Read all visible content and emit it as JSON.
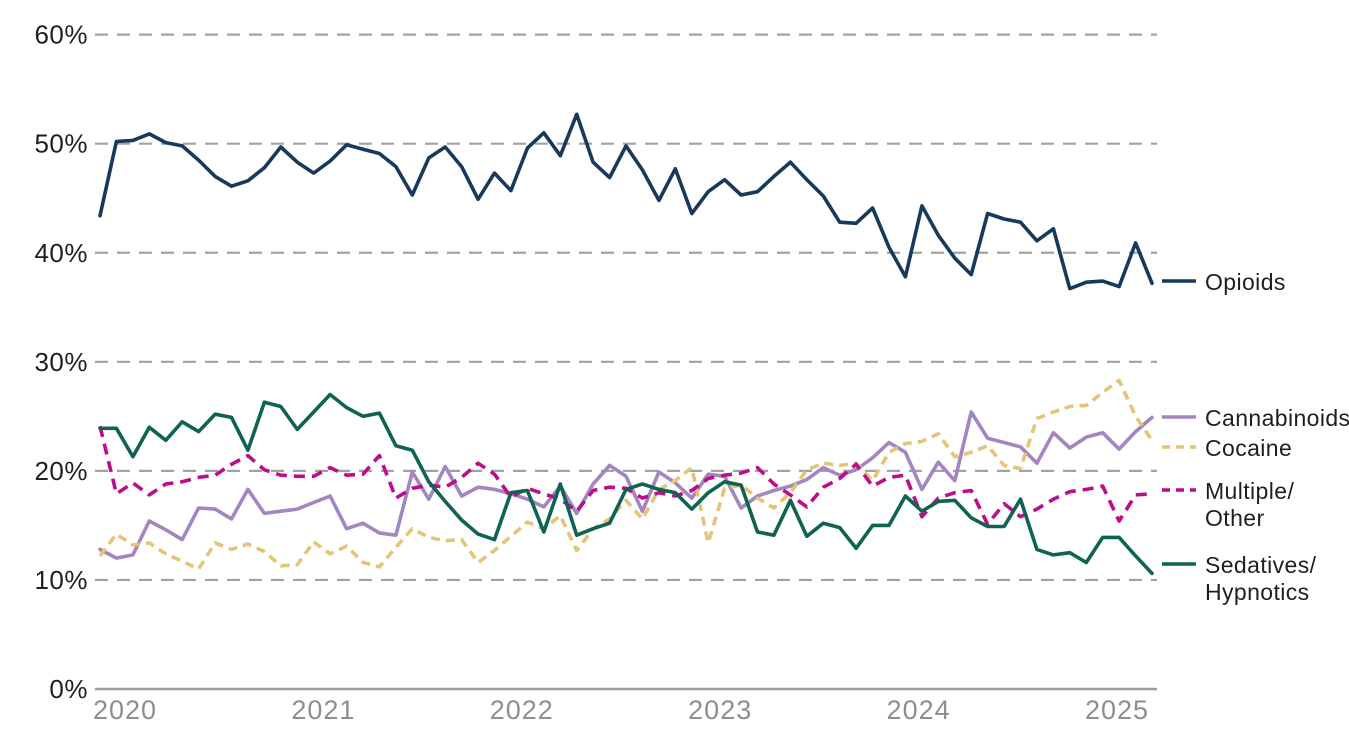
{
  "page": {
    "background": "#ffffff",
    "description_colors": {
      "grid_gray": "#a2a2a2",
      "axis_gray": "#9b9b9b",
      "x_label_gray": "#8e8e8e",
      "text_black": "#1f1f1f"
    }
  },
  "chart_data": {
    "type": "line",
    "title": "",
    "subtitle": "",
    "x_axis": {
      "tick_labels": [
        "2020",
        "2021",
        "2022",
        "2023",
        "2024",
        "2025"
      ],
      "note": "monthly data points, series start just before the 2020 tick and end just after the 2025 tick"
    },
    "y_axis": {
      "tick_labels": [
        "0%",
        "10%",
        "20%",
        "30%",
        "40%",
        "50%",
        "60%"
      ],
      "min": 0,
      "max": 60,
      "unit": "%"
    },
    "grid": {
      "horizontal_dashed_lines": [
        10,
        20,
        30,
        40,
        50,
        60
      ],
      "baseline_solid": 0,
      "vertical_gridlines": false
    },
    "legend": {
      "position": "right",
      "entries": [
        {
          "lines": [
            "Opioids"
          ],
          "color": "#17395c",
          "dashed": false
        },
        {
          "lines": [
            "Cannabinoids"
          ],
          "color": "#a385c1",
          "dashed": false
        },
        {
          "lines": [
            "Cocaine"
          ],
          "color": "#e5c478",
          "dashed": true
        },
        {
          "lines": [
            "Multiple/",
            "Other"
          ],
          "color": "#bb0d8c",
          "dashed": true
        },
        {
          "lines": [
            "Sedatives/",
            "Hypnotics"
          ],
          "color": "#0f6352",
          "dashed": false
        }
      ]
    },
    "series": [
      {
        "name": "Opioids",
        "color": "#17395c",
        "style": "solid",
        "values": [
          43.4,
          50.2,
          50.3,
          50.9,
          50.1,
          49.8,
          48.5,
          47.0,
          46.1,
          46.6,
          47.8,
          49.7,
          48.3,
          47.3,
          48.4,
          49.9,
          49.5,
          49.1,
          47.9,
          45.3,
          48.7,
          49.7,
          47.9,
          44.9,
          47.3,
          45.7,
          49.6,
          51.0,
          48.9,
          52.7,
          48.3,
          46.9,
          49.8,
          47.6,
          44.8,
          47.7,
          43.6,
          45.6,
          46.7,
          45.3,
          45.6,
          47.0,
          48.3,
          46.7,
          45.2,
          42.8,
          42.7,
          44.1,
          40.5,
          37.8,
          44.3,
          41.6,
          39.5,
          38.0,
          43.6,
          43.1,
          42.8,
          41.1,
          42.2,
          36.7,
          37.3,
          37.4,
          36.9,
          40.9,
          37.2
        ]
      },
      {
        "name": "Cannabinoids",
        "color": "#a385c1",
        "style": "solid",
        "values": [
          12.8,
          12.0,
          12.3,
          15.4,
          14.6,
          13.7,
          16.6,
          16.5,
          15.6,
          18.3,
          16.1,
          16.3,
          16.5,
          17.1,
          17.7,
          14.7,
          15.2,
          14.3,
          14.1,
          19.9,
          17.4,
          20.4,
          17.7,
          18.5,
          18.3,
          17.9,
          17.4,
          16.7,
          18.6,
          16.1,
          18.8,
          20.5,
          19.5,
          16.3,
          19.9,
          18.9,
          17.5,
          19.7,
          19.5,
          16.6,
          17.7,
          18.2,
          18.6,
          19.2,
          20.3,
          19.6,
          20.1,
          21.2,
          22.6,
          21.7,
          18.3,
          20.8,
          19.1,
          25.4,
          23.0,
          22.6,
          22.2,
          20.7,
          23.5,
          22.1,
          23.1,
          23.5,
          22.0,
          23.6,
          24.9
        ]
      },
      {
        "name": "Cocaine",
        "color": "#e5c478",
        "style": "dashed",
        "values": [
          12.2,
          14.2,
          13.2,
          13.4,
          12.4,
          11.7,
          11.0,
          13.4,
          12.8,
          13.3,
          12.6,
          11.3,
          11.4,
          13.5,
          12.4,
          13.1,
          11.6,
          11.2,
          13.0,
          14.7,
          13.9,
          13.6,
          13.7,
          11.6,
          12.7,
          14.0,
          15.3,
          14.7,
          15.9,
          12.7,
          14.7,
          15.6,
          17.3,
          15.6,
          18.3,
          19.1,
          20.3,
          13.4,
          18.4,
          18.7,
          17.5,
          16.6,
          18.0,
          20.1,
          20.7,
          20.5,
          20.7,
          19.1,
          21.7,
          22.5,
          22.7,
          23.4,
          21.3,
          21.7,
          22.3,
          20.5,
          20.2,
          24.8,
          25.4,
          25.9,
          26.0,
          27.2,
          28.3,
          25.0,
          22.8
        ]
      },
      {
        "name": "Multiple/Other",
        "color": "#bb0d8c",
        "style": "dashed",
        "values": [
          24.1,
          17.9,
          18.9,
          17.8,
          18.8,
          19.0,
          19.4,
          19.6,
          20.6,
          21.4,
          20.1,
          19.6,
          19.5,
          19.5,
          20.3,
          19.6,
          19.7,
          21.4,
          17.5,
          18.4,
          18.7,
          18.5,
          19.4,
          20.7,
          19.7,
          17.6,
          18.4,
          17.9,
          17.4,
          16.3,
          18.2,
          18.5,
          18.4,
          17.5,
          18.0,
          17.7,
          18.2,
          19.3,
          19.6,
          19.8,
          20.3,
          18.8,
          17.8,
          16.7,
          18.5,
          19.3,
          20.6,
          18.6,
          19.4,
          19.6,
          15.8,
          17.5,
          18.0,
          18.2,
          15.1,
          17.0,
          15.8,
          16.5,
          17.4,
          18.1,
          18.3,
          18.6,
          15.4,
          17.8,
          17.9
        ]
      },
      {
        "name": "Sedatives/Hypnotics",
        "color": "#0f6352",
        "style": "solid",
        "values": [
          23.9,
          23.9,
          21.3,
          24.0,
          22.8,
          24.5,
          23.6,
          25.2,
          24.9,
          21.9,
          26.3,
          25.9,
          23.8,
          25.4,
          27.0,
          25.8,
          25.0,
          25.3,
          22.3,
          21.9,
          19.0,
          17.2,
          15.5,
          14.2,
          13.7,
          18.0,
          18.2,
          14.4,
          18.8,
          14.1,
          14.7,
          15.2,
          18.3,
          18.8,
          18.3,
          18.0,
          16.5,
          18.0,
          19.0,
          18.7,
          14.4,
          14.1,
          17.3,
          14.0,
          15.2,
          14.8,
          12.9,
          15.0,
          15.0,
          17.7,
          16.3,
          17.2,
          17.3,
          15.7,
          14.9,
          14.9,
          17.4,
          12.8,
          12.3,
          12.5,
          11.6,
          13.9,
          13.9,
          12.2,
          10.6
        ]
      }
    ]
  }
}
